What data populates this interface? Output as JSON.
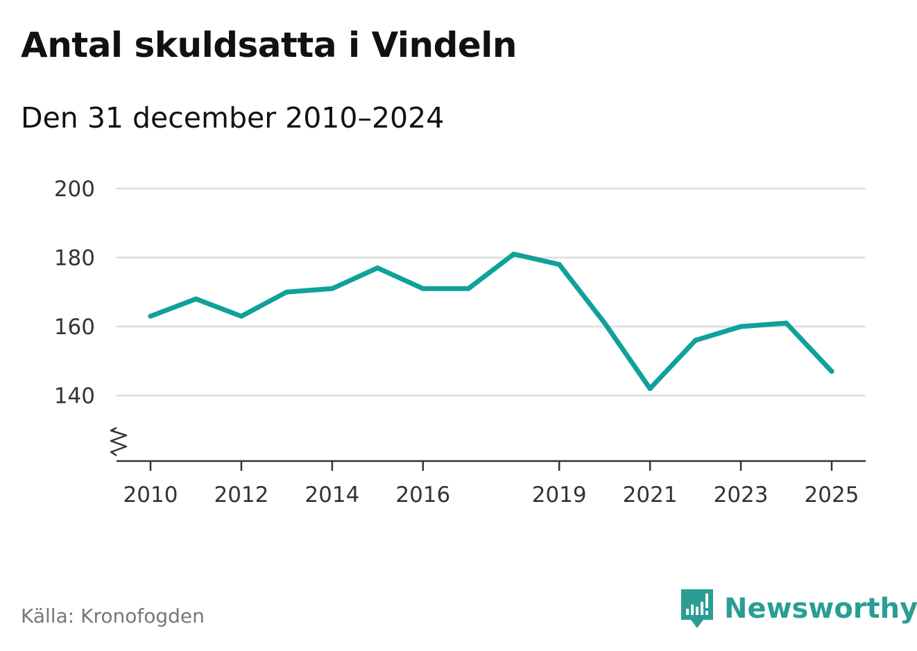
{
  "title": "Antal skuldsatta i Vindeln",
  "subtitle": "Den 31 december 2010–2024",
  "source": "Källa: Kronofogden",
  "brand": {
    "name": "Newsworthy",
    "icon": "newsworthy-logo-icon",
    "color": "#2a9d95"
  },
  "colors": {
    "line": "#0fa19a",
    "grid": "#dddddd",
    "axis": "#333333"
  },
  "chart_data": {
    "type": "line",
    "title": "Antal skuldsatta i Vindeln",
    "subtitle": "Den 31 december 2010–2024",
    "xlabel": "",
    "ylabel": "",
    "ylim": [
      121,
      200
    ],
    "xlim": [
      2010,
      2025
    ],
    "y_ticks": [
      140,
      160,
      180,
      200
    ],
    "x_ticks": [
      2010,
      2012,
      2014,
      2016,
      2019,
      2021,
      2023,
      2025
    ],
    "axis_break": true,
    "grid": true,
    "series": [
      {
        "name": "Antal skuldsatta",
        "x": [
          2010,
          2011,
          2012,
          2013,
          2014,
          2015,
          2016,
          2017,
          2018,
          2019,
          2020,
          2021,
          2022,
          2023,
          2024,
          2025
        ],
        "values": [
          163,
          168,
          163,
          170,
          171,
          177,
          171,
          171,
          181,
          178,
          161,
          142,
          156,
          160,
          161,
          147
        ]
      }
    ]
  }
}
